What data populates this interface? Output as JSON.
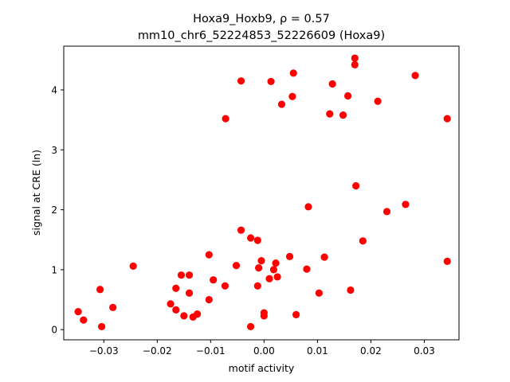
{
  "chart_data": {
    "type": "scatter",
    "title_line1": "Hoxa9_Hoxb9, ρ = 0.57",
    "title_line2": "mm10_chr6_52224853_52226609 (Hoxa9)",
    "xlabel": "motif activity",
    "ylabel": "signal at CRE (ln)",
    "xlim": [
      -0.0375,
      0.0365
    ],
    "ylim": [
      -0.17,
      4.73
    ],
    "xticks": [
      -0.03,
      -0.02,
      -0.01,
      0.0,
      0.01,
      0.02,
      0.03
    ],
    "xtick_labels": [
      "−0.03",
      "−0.02",
      "−0.01",
      "0.00",
      "0.01",
      "0.02",
      "0.03"
    ],
    "yticks": [
      0,
      1,
      2,
      3,
      4
    ],
    "ytick_labels": [
      "0",
      "1",
      "2",
      "3",
      "4"
    ],
    "grid": false,
    "marker_color": "#ff0000",
    "points": [
      {
        "x": -0.0348,
        "y": 0.3
      },
      {
        "x": -0.0338,
        "y": 0.16
      },
      {
        "x": -0.0307,
        "y": 0.67
      },
      {
        "x": -0.0304,
        "y": 0.05
      },
      {
        "x": -0.0283,
        "y": 0.37
      },
      {
        "x": -0.0245,
        "y": 1.06
      },
      {
        "x": -0.0175,
        "y": 0.43
      },
      {
        "x": -0.0165,
        "y": 0.33
      },
      {
        "x": -0.0165,
        "y": 0.69
      },
      {
        "x": -0.0155,
        "y": 0.91
      },
      {
        "x": -0.015,
        "y": 0.23
      },
      {
        "x": -0.014,
        "y": 0.91
      },
      {
        "x": -0.014,
        "y": 0.61
      },
      {
        "x": -0.0133,
        "y": 0.21
      },
      {
        "x": -0.0125,
        "y": 0.26
      },
      {
        "x": -0.0103,
        "y": 1.25
      },
      {
        "x": -0.0103,
        "y": 0.5
      },
      {
        "x": -0.0095,
        "y": 0.83
      },
      {
        "x": -0.0073,
        "y": 0.73
      },
      {
        "x": -0.0072,
        "y": 3.52
      },
      {
        "x": -0.0052,
        "y": 1.07
      },
      {
        "x": -0.0043,
        "y": 1.66
      },
      {
        "x": -0.0043,
        "y": 4.15
      },
      {
        "x": -0.0025,
        "y": 1.53
      },
      {
        "x": -0.0025,
        "y": 0.05
      },
      {
        "x": -0.0012,
        "y": 1.49
      },
      {
        "x": -0.0012,
        "y": 0.73
      },
      {
        "x": -0.001,
        "y": 1.03
      },
      {
        "x": -0.0005,
        "y": 1.15
      },
      {
        "x": 0.0,
        "y": 0.28
      },
      {
        "x": 0.0,
        "y": 0.23
      },
      {
        "x": 0.001,
        "y": 0.85
      },
      {
        "x": 0.0013,
        "y": 4.14
      },
      {
        "x": 0.0018,
        "y": 1.0
      },
      {
        "x": 0.0022,
        "y": 1.11
      },
      {
        "x": 0.0025,
        "y": 0.88
      },
      {
        "x": 0.0033,
        "y": 3.76
      },
      {
        "x": 0.0048,
        "y": 1.22
      },
      {
        "x": 0.0053,
        "y": 3.89
      },
      {
        "x": 0.0055,
        "y": 4.28
      },
      {
        "x": 0.006,
        "y": 0.25
      },
      {
        "x": 0.008,
        "y": 1.01
      },
      {
        "x": 0.0083,
        "y": 2.05
      },
      {
        "x": 0.0103,
        "y": 0.61
      },
      {
        "x": 0.0113,
        "y": 1.21
      },
      {
        "x": 0.0123,
        "y": 3.6
      },
      {
        "x": 0.0128,
        "y": 4.1
      },
      {
        "x": 0.0148,
        "y": 3.58
      },
      {
        "x": 0.0157,
        "y": 3.9
      },
      {
        "x": 0.0162,
        "y": 0.66
      },
      {
        "x": 0.017,
        "y": 4.53
      },
      {
        "x": 0.017,
        "y": 4.42
      },
      {
        "x": 0.0172,
        "y": 2.4
      },
      {
        "x": 0.0185,
        "y": 1.48
      },
      {
        "x": 0.0213,
        "y": 3.81
      },
      {
        "x": 0.023,
        "y": 1.97
      },
      {
        "x": 0.0265,
        "y": 2.09
      },
      {
        "x": 0.0283,
        "y": 4.24
      },
      {
        "x": 0.0343,
        "y": 3.52
      },
      {
        "x": 0.0343,
        "y": 1.14
      }
    ]
  }
}
